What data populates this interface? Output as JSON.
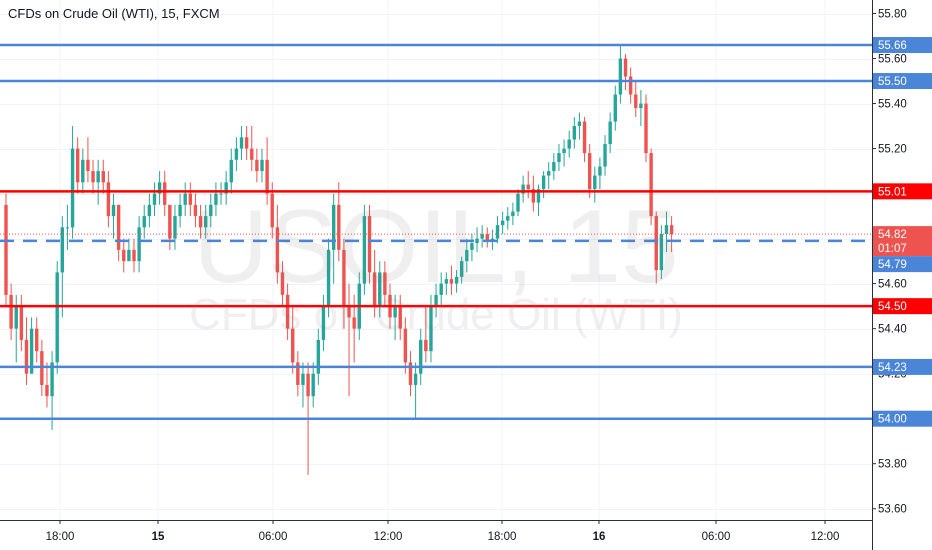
{
  "symbol": {
    "title": "CFDs on Crude Oil (WTI), 15, FXCM",
    "watermark_symbol": "USOIL, 15",
    "watermark_description": "CFDs on Crude Oil (WTI)"
  },
  "chart_data": {
    "type": "candlestick",
    "instrument": "CFDs on Crude Oil (WTI)",
    "timeframe": "15",
    "broker": "FXCM",
    "ylim": [
      53.55,
      55.86
    ],
    "y_ticks": [
      "53.60",
      "53.80",
      "54.00",
      "54.20",
      "54.40",
      "54.60",
      "54.80",
      "55.00",
      "55.20",
      "55.40",
      "55.60",
      "55.80"
    ],
    "x_ticks": [
      {
        "label": "18:00",
        "bold": false
      },
      {
        "label": "15",
        "bold": true
      },
      {
        "label": "06:00",
        "bold": false
      },
      {
        "label": "12:00",
        "bold": false
      },
      {
        "label": "18:00",
        "bold": false
      },
      {
        "label": "16",
        "bold": true
      },
      {
        "label": "06:00",
        "bold": false
      },
      {
        "label": "12:00",
        "bold": false
      }
    ],
    "horizontal_lines": [
      {
        "price": 55.66,
        "label": "55.66",
        "color": "#4a85d8",
        "style": "solid"
      },
      {
        "price": 55.5,
        "label": "55.50",
        "color": "#4a85d8",
        "style": "solid"
      },
      {
        "price": 55.01,
        "label": "55.01",
        "color": "#ff0000",
        "style": "solid"
      },
      {
        "price": 54.79,
        "label": "54.79",
        "color": "#4a85d8",
        "style": "dashed"
      },
      {
        "price": 54.5,
        "label": "54.50",
        "color": "#ff0000",
        "style": "solid"
      },
      {
        "price": 54.23,
        "label": "54.23",
        "color": "#4a85d8",
        "style": "solid"
      },
      {
        "price": 54.0,
        "label": "54.00",
        "color": "#4a85d8",
        "style": "solid"
      }
    ],
    "last_price": {
      "price": 54.82,
      "label": "54.82",
      "countdown": "01:07",
      "color": "#ef5350"
    },
    "colors": {
      "up": "#26a69a",
      "down": "#ef5350"
    },
    "ohlc": [
      [
        54.95,
        55.0,
        54.5,
        54.55
      ],
      [
        54.55,
        54.6,
        54.35,
        54.4
      ],
      [
        54.4,
        54.55,
        54.25,
        54.5
      ],
      [
        54.5,
        54.55,
        54.3,
        54.35
      ],
      [
        54.35,
        54.45,
        54.15,
        54.2
      ],
      [
        54.2,
        54.45,
        54.2,
        54.4
      ],
      [
        54.4,
        54.45,
        54.25,
        54.3
      ],
      [
        54.3,
        54.35,
        54.1,
        54.15
      ],
      [
        54.15,
        54.25,
        54.05,
        54.1
      ],
      [
        54.1,
        54.3,
        53.95,
        54.25
      ],
      [
        54.25,
        54.7,
        54.2,
        54.65
      ],
      [
        54.65,
        54.9,
        54.45,
        54.85
      ],
      [
        54.85,
        54.95,
        54.75,
        54.85
      ],
      [
        54.85,
        55.3,
        54.8,
        55.2
      ],
      [
        55.2,
        55.25,
        55.0,
        55.05
      ],
      [
        55.05,
        55.2,
        55.0,
        55.15
      ],
      [
        55.15,
        55.25,
        55.05,
        55.1
      ],
      [
        55.1,
        55.15,
        55.0,
        55.05
      ],
      [
        55.05,
        55.15,
        54.95,
        55.1
      ],
      [
        55.1,
        55.15,
        55.0,
        55.05
      ],
      [
        55.05,
        55.1,
        54.85,
        54.9
      ],
      [
        54.9,
        55.0,
        54.8,
        54.95
      ],
      [
        54.95,
        54.95,
        54.7,
        54.75
      ],
      [
        54.75,
        54.8,
        54.65,
        54.7
      ],
      [
        54.7,
        54.8,
        54.7,
        54.75
      ],
      [
        54.75,
        54.8,
        54.65,
        54.7
      ],
      [
        54.7,
        54.9,
        54.65,
        54.85
      ],
      [
        54.85,
        54.95,
        54.8,
        54.9
      ],
      [
        54.9,
        55.0,
        54.85,
        54.95
      ],
      [
        54.95,
        55.05,
        54.9,
        55.0
      ],
      [
        55.0,
        55.1,
        54.95,
        55.05
      ],
      [
        55.05,
        55.1,
        54.9,
        54.95
      ],
      [
        54.95,
        54.95,
        54.75,
        54.8
      ],
      [
        54.8,
        54.95,
        54.75,
        54.9
      ],
      [
        54.9,
        55.0,
        54.85,
        54.95
      ],
      [
        54.95,
        55.05,
        54.9,
        55.0
      ],
      [
        55.0,
        55.05,
        54.9,
        54.95
      ],
      [
        54.95,
        55.0,
        54.85,
        54.9
      ],
      [
        54.9,
        54.95,
        54.8,
        54.85
      ],
      [
        54.85,
        54.95,
        54.8,
        54.9
      ],
      [
        54.9,
        55.0,
        54.85,
        54.95
      ],
      [
        54.95,
        55.05,
        54.9,
        55.0
      ],
      [
        55.0,
        55.05,
        54.95,
        55.0
      ],
      [
        55.0,
        55.1,
        54.95,
        55.05
      ],
      [
        55.05,
        55.2,
        55.0,
        55.15
      ],
      [
        55.15,
        55.25,
        55.1,
        55.2
      ],
      [
        55.2,
        55.3,
        55.15,
        55.25
      ],
      [
        55.25,
        55.3,
        55.15,
        55.2
      ],
      [
        55.2,
        55.3,
        55.1,
        55.15
      ],
      [
        55.15,
        55.2,
        55.05,
        55.1
      ],
      [
        55.1,
        55.2,
        55.05,
        55.15
      ],
      [
        55.15,
        55.25,
        54.95,
        55.0
      ],
      [
        55.0,
        55.05,
        54.8,
        54.85
      ],
      [
        54.85,
        54.95,
        54.6,
        54.65
      ],
      [
        54.65,
        54.7,
        54.5,
        54.55
      ],
      [
        54.55,
        54.6,
        54.35,
        54.4
      ],
      [
        54.4,
        54.5,
        54.2,
        54.25
      ],
      [
        54.25,
        54.3,
        54.1,
        54.15
      ],
      [
        54.15,
        54.25,
        54.05,
        54.2
      ],
      [
        54.2,
        54.25,
        53.75,
        54.1
      ],
      [
        54.1,
        54.25,
        54.05,
        54.2
      ],
      [
        54.2,
        54.4,
        54.15,
        54.35
      ],
      [
        54.35,
        54.55,
        54.3,
        54.5
      ],
      [
        54.5,
        54.8,
        54.45,
        54.75
      ],
      [
        54.75,
        55.0,
        54.6,
        54.95
      ],
      [
        54.95,
        55.05,
        54.7,
        54.75
      ],
      [
        54.75,
        54.8,
        54.4,
        54.5
      ],
      [
        54.5,
        54.6,
        54.1,
        54.45
      ],
      [
        54.45,
        54.55,
        54.25,
        54.4
      ],
      [
        54.4,
        54.65,
        54.35,
        54.6
      ],
      [
        54.6,
        54.95,
        54.55,
        54.9
      ],
      [
        54.9,
        54.95,
        54.6,
        54.65
      ],
      [
        54.65,
        54.75,
        54.45,
        54.5
      ],
      [
        54.5,
        54.7,
        54.45,
        54.65
      ],
      [
        54.65,
        54.7,
        54.5,
        54.55
      ],
      [
        54.55,
        54.6,
        54.4,
        54.45
      ],
      [
        54.45,
        54.55,
        54.35,
        54.5
      ],
      [
        54.5,
        54.55,
        54.35,
        54.4
      ],
      [
        54.4,
        54.45,
        54.2,
        54.25
      ],
      [
        54.25,
        54.3,
        54.1,
        54.15
      ],
      [
        54.15,
        54.25,
        54.0,
        54.2
      ],
      [
        54.2,
        54.4,
        54.15,
        54.35
      ],
      [
        54.35,
        54.5,
        54.25,
        54.3
      ],
      [
        54.3,
        54.55,
        54.25,
        54.5
      ],
      [
        54.5,
        54.6,
        54.45,
        54.55
      ],
      [
        54.55,
        54.65,
        54.5,
        54.6
      ],
      [
        54.6,
        54.65,
        54.55,
        54.62
      ],
      [
        54.62,
        54.68,
        54.55,
        54.6
      ],
      [
        54.6,
        54.66,
        54.56,
        54.63
      ],
      [
        54.63,
        54.72,
        54.6,
        54.7
      ],
      [
        54.7,
        54.8,
        54.65,
        54.75
      ],
      [
        54.75,
        54.82,
        54.7,
        54.78
      ],
      [
        54.78,
        54.85,
        54.74,
        54.8
      ],
      [
        54.8,
        54.86,
        54.76,
        54.82
      ],
      [
        54.82,
        54.85,
        54.76,
        54.79
      ],
      [
        54.79,
        54.84,
        54.75,
        54.8
      ],
      [
        54.8,
        54.9,
        54.78,
        54.86
      ],
      [
        54.86,
        54.92,
        54.82,
        54.88
      ],
      [
        54.88,
        54.94,
        54.84,
        54.9
      ],
      [
        54.9,
        54.96,
        54.86,
        54.92
      ],
      [
        54.92,
        55.02,
        54.9,
        55.0
      ],
      [
        55.0,
        55.08,
        54.96,
        55.04
      ],
      [
        55.04,
        55.1,
        54.98,
        55.02
      ],
      [
        55.02,
        55.08,
        54.92,
        54.96
      ],
      [
        54.96,
        55.04,
        54.9,
        55.02
      ],
      [
        55.02,
        55.1,
        54.98,
        55.08
      ],
      [
        55.08,
        55.14,
        55.02,
        55.1
      ],
      [
        55.1,
        55.18,
        55.06,
        55.14
      ],
      [
        55.14,
        55.22,
        55.1,
        55.18
      ],
      [
        55.18,
        55.24,
        55.12,
        55.2
      ],
      [
        55.2,
        55.28,
        55.16,
        55.24
      ],
      [
        55.24,
        55.34,
        55.2,
        55.3
      ],
      [
        55.3,
        55.36,
        55.24,
        55.32
      ],
      [
        55.32,
        55.34,
        55.14,
        55.18
      ],
      [
        55.18,
        55.22,
        54.98,
        55.02
      ],
      [
        55.02,
        55.12,
        54.96,
        55.08
      ],
      [
        55.08,
        55.16,
        55.02,
        55.12
      ],
      [
        55.12,
        55.26,
        55.08,
        55.22
      ],
      [
        55.22,
        55.36,
        55.18,
        55.32
      ],
      [
        55.32,
        55.48,
        55.28,
        55.44
      ],
      [
        55.44,
        55.66,
        55.4,
        55.6
      ],
      [
        55.6,
        55.62,
        55.46,
        55.52
      ],
      [
        55.52,
        55.56,
        55.4,
        55.44
      ],
      [
        55.44,
        55.5,
        55.34,
        55.38
      ],
      [
        55.38,
        55.46,
        55.3,
        55.4
      ],
      [
        55.4,
        55.44,
        55.14,
        55.18
      ],
      [
        55.18,
        55.2,
        54.86,
        54.9
      ],
      [
        54.9,
        54.92,
        54.6,
        54.66
      ],
      [
        54.66,
        54.86,
        54.62,
        54.82
      ],
      [
        54.82,
        54.92,
        54.74,
        54.86
      ],
      [
        54.86,
        54.9,
        54.74,
        54.82
      ]
    ]
  }
}
